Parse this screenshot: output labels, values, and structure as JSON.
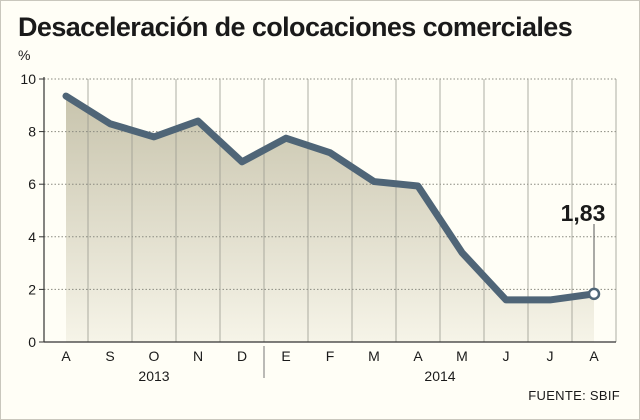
{
  "chart_data": {
    "type": "line",
    "title": "Desaceleración de colocaciones comerciales",
    "ylabel": "%",
    "xlabel": "",
    "categories": [
      "A",
      "S",
      "O",
      "N",
      "D",
      "E",
      "F",
      "M",
      "A",
      "M",
      "J",
      "J",
      "A"
    ],
    "year_groups": [
      {
        "label": "2013",
        "start": 0,
        "end": 4
      },
      {
        "label": "2014",
        "start": 5,
        "end": 12
      }
    ],
    "yticks": [
      "0",
      "2",
      "4",
      "6",
      "8",
      "10"
    ],
    "ylim": [
      0,
      10
    ],
    "series": [
      {
        "values": [
          9.35,
          8.3,
          7.8,
          8.4,
          6.85,
          7.75,
          7.2,
          6.1,
          5.93,
          3.4,
          1.6,
          1.6,
          1.83
        ]
      }
    ],
    "annotation": {
      "index": 12,
      "text": "1,83"
    },
    "grid": true,
    "colors": {
      "line": "#4f6577",
      "fill_top": "#c8c4ad",
      "fill_bottom": "#f6f4e8",
      "grid": "#8a8a80"
    }
  },
  "source": "FUENTE: SBIF"
}
